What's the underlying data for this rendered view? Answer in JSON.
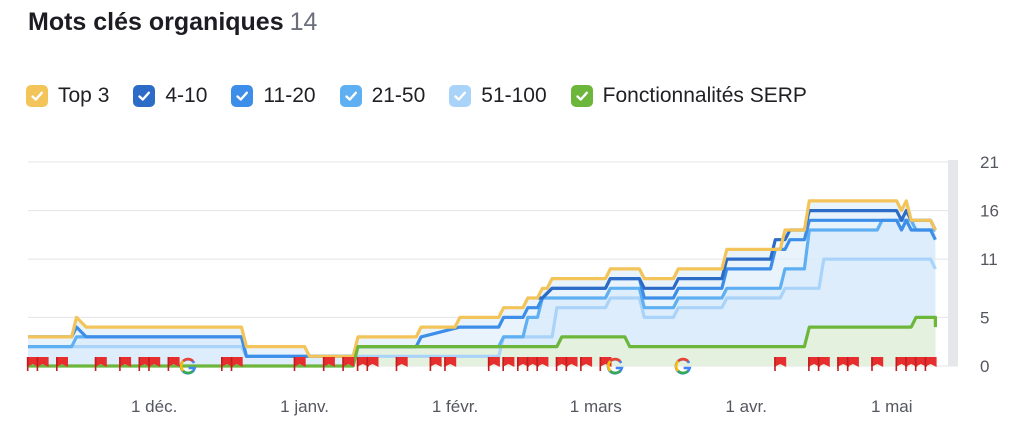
{
  "title": "Mots clés organiques",
  "count": "14",
  "legend": [
    {
      "label": "Top 3",
      "color": "#f2c45a"
    },
    {
      "label": "4-10",
      "color": "#2c6cc7"
    },
    {
      "label": "11-20",
      "color": "#3d8ee8"
    },
    {
      "label": "21-50",
      "color": "#5fb0f2"
    },
    {
      "label": "51-100",
      "color": "#a9d3f8"
    },
    {
      "label": "Fonctionnalités SERP",
      "color": "#6cb63c"
    }
  ],
  "chart_data": {
    "type": "line",
    "x_range": [
      "2023-11-05",
      "2024-05-13"
    ],
    "x_ticks": [
      {
        "label": "1 déc.",
        "date": "2023-12-01"
      },
      {
        "label": "1 janv.",
        "date": "2024-01-01"
      },
      {
        "label": "1 févr.",
        "date": "2024-02-01"
      },
      {
        "label": "1 mars",
        "date": "2024-03-01"
      },
      {
        "label": "1 avr.",
        "date": "2024-04-01"
      },
      {
        "label": "1 mai",
        "date": "2024-05-01"
      }
    ],
    "y_ticks": [
      "21",
      "16",
      "11",
      "5",
      "0"
    ],
    "y_tick_values": [
      21,
      16,
      11,
      5,
      0
    ],
    "ylim": [
      0,
      21
    ],
    "grid": true,
    "series": [
      {
        "name": "Top 3",
        "color": "#f2c45a",
        "points": [
          [
            "2023-11-05",
            3
          ],
          [
            "2023-11-14",
            3
          ],
          [
            "2023-11-15",
            5
          ],
          [
            "2023-11-17",
            4
          ],
          [
            "2023-12-19",
            4
          ],
          [
            "2023-12-20",
            2
          ],
          [
            "2024-01-01",
            2
          ],
          [
            "2024-01-02",
            1
          ],
          [
            "2024-01-11",
            1
          ],
          [
            "2024-01-12",
            3
          ],
          [
            "2024-01-24",
            3
          ],
          [
            "2024-01-25",
            4
          ],
          [
            "2024-02-01",
            4
          ],
          [
            "2024-02-02",
            5
          ],
          [
            "2024-02-10",
            5
          ],
          [
            "2024-02-11",
            6
          ],
          [
            "2024-02-15",
            6
          ],
          [
            "2024-02-16",
            7
          ],
          [
            "2024-02-18",
            7
          ],
          [
            "2024-02-19",
            8
          ],
          [
            "2024-02-20",
            8
          ],
          [
            "2024-02-21",
            9
          ],
          [
            "2024-03-03",
            9
          ],
          [
            "2024-03-04",
            10
          ],
          [
            "2024-03-10",
            10
          ],
          [
            "2024-03-11",
            9
          ],
          [
            "2024-03-17",
            9
          ],
          [
            "2024-03-18",
            10
          ],
          [
            "2024-03-27",
            10
          ],
          [
            "2024-03-28",
            12
          ],
          [
            "2024-04-08",
            12
          ],
          [
            "2024-04-09",
            14
          ],
          [
            "2024-04-13",
            14
          ],
          [
            "2024-04-14",
            17
          ],
          [
            "2024-05-02",
            17
          ],
          [
            "2024-05-03",
            16
          ],
          [
            "2024-05-04",
            17
          ],
          [
            "2024-05-05",
            15
          ],
          [
            "2024-05-09",
            15
          ],
          [
            "2024-05-10",
            14
          ]
        ]
      },
      {
        "name": "4-10",
        "color": "#2c6cc7",
        "points": [
          [
            "2024-02-18",
            7
          ],
          [
            "2024-02-19",
            7
          ],
          [
            "2024-02-21",
            8
          ],
          [
            "2024-03-03",
            8
          ],
          [
            "2024-03-04",
            9
          ],
          [
            "2024-03-10",
            9
          ],
          [
            "2024-03-11",
            8
          ],
          [
            "2024-03-17",
            8
          ],
          [
            "2024-03-18",
            9
          ],
          [
            "2024-03-27",
            9
          ],
          [
            "2024-03-28",
            11
          ],
          [
            "2024-04-06",
            11
          ],
          [
            "2024-04-07",
            13
          ],
          [
            "2024-04-09",
            13
          ],
          [
            "2024-04-10",
            14
          ],
          [
            "2024-04-13",
            14
          ],
          [
            "2024-04-14",
            16
          ],
          [
            "2024-05-02",
            16
          ],
          [
            "2024-05-03",
            15
          ],
          [
            "2024-05-04",
            16
          ],
          [
            "2024-05-05",
            15
          ],
          [
            "2024-05-09",
            15
          ],
          [
            "2024-05-10",
            14
          ]
        ]
      },
      {
        "name": "11-20",
        "color": "#3d8ee8",
        "points": [
          [
            "2023-11-05",
            3
          ],
          [
            "2023-11-14",
            3
          ],
          [
            "2023-11-15",
            4
          ],
          [
            "2023-11-17",
            3
          ],
          [
            "2023-12-19",
            3
          ],
          [
            "2023-12-20",
            1
          ],
          [
            "2024-01-01",
            1
          ],
          [
            "2024-01-11",
            1
          ],
          [
            "2024-01-12",
            2
          ],
          [
            "2024-01-24",
            2
          ],
          [
            "2024-01-25",
            3
          ],
          [
            "2024-02-02",
            4
          ],
          [
            "2024-02-10",
            4
          ],
          [
            "2024-02-11",
            5
          ],
          [
            "2024-02-15",
            5
          ],
          [
            "2024-02-16",
            6
          ],
          [
            "2024-02-18",
            6
          ],
          [
            "2024-02-19",
            7
          ],
          [
            "2024-02-21",
            8
          ],
          [
            "2024-03-03",
            8
          ],
          [
            "2024-03-04",
            9
          ],
          [
            "2024-03-10",
            9
          ],
          [
            "2024-03-11",
            7
          ],
          [
            "2024-03-17",
            7
          ],
          [
            "2024-03-18",
            8
          ],
          [
            "2024-03-27",
            8
          ],
          [
            "2024-03-28",
            10
          ],
          [
            "2024-04-06",
            10
          ],
          [
            "2024-04-07",
            12
          ],
          [
            "2024-04-09",
            12
          ],
          [
            "2024-04-10",
            13
          ],
          [
            "2024-04-13",
            13
          ],
          [
            "2024-04-14",
            15
          ],
          [
            "2024-05-02",
            15
          ],
          [
            "2024-05-03",
            14
          ],
          [
            "2024-05-04",
            15
          ],
          [
            "2024-05-05",
            14
          ],
          [
            "2024-05-09",
            14
          ],
          [
            "2024-05-10",
            13
          ]
        ]
      },
      {
        "name": "21-50",
        "color": "#5fb0f2",
        "points": [
          [
            "2023-11-05",
            2
          ],
          [
            "2023-11-14",
            2
          ],
          [
            "2023-11-15",
            3
          ],
          [
            "2023-12-19",
            3
          ],
          [
            "2023-12-20",
            1
          ],
          [
            "2024-01-11",
            1
          ],
          [
            "2024-01-12",
            2
          ],
          [
            "2024-02-10",
            2
          ],
          [
            "2024-02-11",
            3
          ],
          [
            "2024-02-15",
            3
          ],
          [
            "2024-02-16",
            5
          ],
          [
            "2024-02-18",
            5
          ],
          [
            "2024-02-19",
            7
          ],
          [
            "2024-03-03",
            7
          ],
          [
            "2024-03-04",
            8
          ],
          [
            "2024-03-10",
            8
          ],
          [
            "2024-03-11",
            6
          ],
          [
            "2024-03-17",
            6
          ],
          [
            "2024-03-18",
            7
          ],
          [
            "2024-03-27",
            7
          ],
          [
            "2024-03-28",
            8
          ],
          [
            "2024-04-08",
            8
          ],
          [
            "2024-04-09",
            10
          ],
          [
            "2024-04-13",
            10
          ],
          [
            "2024-04-14",
            14
          ],
          [
            "2024-04-28",
            14
          ],
          [
            "2024-04-29",
            15
          ],
          [
            "2024-05-05",
            15
          ],
          [
            "2024-05-06",
            14
          ],
          [
            "2024-05-10",
            14
          ]
        ]
      },
      {
        "name": "51-100",
        "color": "#a9d3f8",
        "points": [
          [
            "2023-11-05",
            2
          ],
          [
            "2023-12-19",
            2
          ],
          [
            "2023-12-20",
            1
          ],
          [
            "2024-02-10",
            1
          ],
          [
            "2024-02-11",
            3
          ],
          [
            "2024-02-21",
            3
          ],
          [
            "2024-02-22",
            6
          ],
          [
            "2024-03-03",
            6
          ],
          [
            "2024-03-04",
            7
          ],
          [
            "2024-03-10",
            7
          ],
          [
            "2024-03-11",
            5
          ],
          [
            "2024-03-17",
            5
          ],
          [
            "2024-03-18",
            6
          ],
          [
            "2024-03-27",
            6
          ],
          [
            "2024-03-28",
            7
          ],
          [
            "2024-04-08",
            7
          ],
          [
            "2024-04-09",
            8
          ],
          [
            "2024-04-16",
            8
          ],
          [
            "2024-04-17",
            11
          ],
          [
            "2024-05-09",
            11
          ],
          [
            "2024-05-10",
            10
          ]
        ]
      },
      {
        "name": "Fonctionnalités SERP",
        "color": "#6cb63c",
        "points": [
          [
            "2023-11-05",
            0
          ],
          [
            "2024-01-11",
            0
          ],
          [
            "2024-01-12",
            2
          ],
          [
            "2024-02-22",
            2
          ],
          [
            "2024-02-23",
            3
          ],
          [
            "2024-03-07",
            3
          ],
          [
            "2024-03-08",
            2
          ],
          [
            "2024-04-13",
            2
          ],
          [
            "2024-04-14",
            4
          ],
          [
            "2024-05-05",
            4
          ],
          [
            "2024-05-06",
            5
          ],
          [
            "2024-05-10",
            5
          ],
          [
            "2024-05-10",
            4
          ]
        ]
      }
    ],
    "event_markers": [
      {
        "type": "flag",
        "date": "2023-11-06"
      },
      {
        "type": "flag",
        "date": "2023-11-08"
      },
      {
        "type": "flag",
        "date": "2023-11-12"
      },
      {
        "type": "flag",
        "date": "2023-11-20"
      },
      {
        "type": "flag",
        "date": "2023-11-25"
      },
      {
        "type": "flag",
        "date": "2023-11-29"
      },
      {
        "type": "flag",
        "date": "2023-12-01"
      },
      {
        "type": "flag",
        "date": "2023-12-05"
      },
      {
        "type": "google",
        "date": "2023-12-08"
      },
      {
        "type": "flag",
        "date": "2023-12-16"
      },
      {
        "type": "flag",
        "date": "2023-12-18"
      },
      {
        "type": "flag",
        "date": "2023-12-31"
      },
      {
        "type": "flag",
        "date": "2024-01-06"
      },
      {
        "type": "flag",
        "date": "2024-01-10"
      },
      {
        "type": "flag",
        "date": "2024-01-13"
      },
      {
        "type": "flag",
        "date": "2024-01-15"
      },
      {
        "type": "flag",
        "date": "2024-01-21"
      },
      {
        "type": "flag",
        "date": "2024-01-28"
      },
      {
        "type": "flag",
        "date": "2024-01-31"
      },
      {
        "type": "flag",
        "date": "2024-02-09"
      },
      {
        "type": "flag",
        "date": "2024-02-12"
      },
      {
        "type": "flag",
        "date": "2024-02-15"
      },
      {
        "type": "flag",
        "date": "2024-02-17"
      },
      {
        "type": "flag",
        "date": "2024-02-19"
      },
      {
        "type": "flag",
        "date": "2024-02-23"
      },
      {
        "type": "flag",
        "date": "2024-02-25"
      },
      {
        "type": "flag",
        "date": "2024-02-28"
      },
      {
        "type": "flag",
        "date": "2024-03-03"
      },
      {
        "type": "google",
        "date": "2024-03-05"
      },
      {
        "type": "google",
        "date": "2024-03-19"
      },
      {
        "type": "flag",
        "date": "2024-04-08"
      },
      {
        "type": "flag",
        "date": "2024-04-15"
      },
      {
        "type": "flag",
        "date": "2024-04-17"
      },
      {
        "type": "flag",
        "date": "2024-04-21"
      },
      {
        "type": "flag",
        "date": "2024-04-23"
      },
      {
        "type": "flag",
        "date": "2024-04-28"
      },
      {
        "type": "flag",
        "date": "2024-05-03"
      },
      {
        "type": "flag",
        "date": "2024-05-05"
      },
      {
        "type": "flag",
        "date": "2024-05-07"
      },
      {
        "type": "flag",
        "date": "2024-05-09"
      }
    ]
  }
}
